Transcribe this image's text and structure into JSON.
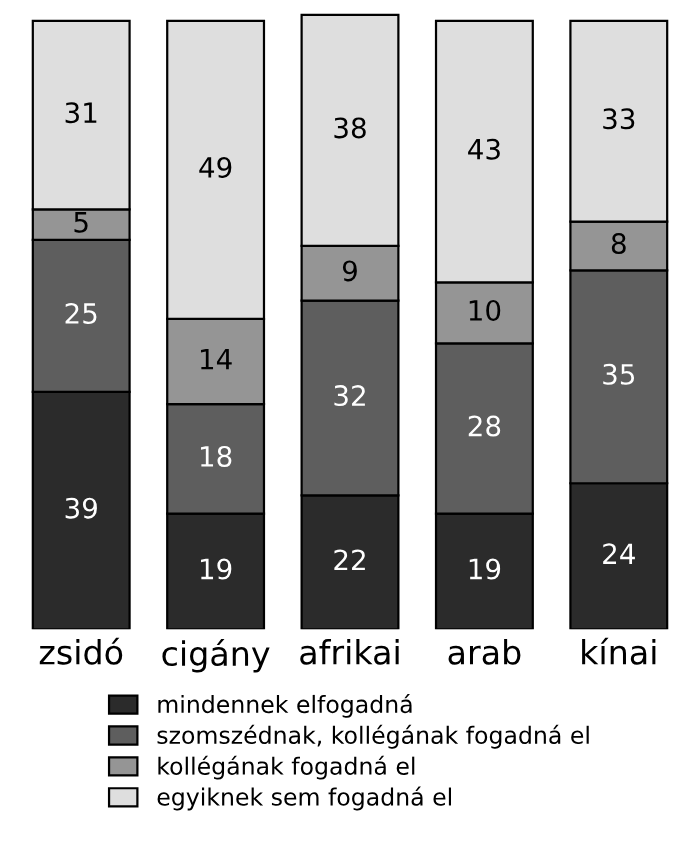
{
  "chart_data": {
    "type": "bar",
    "stacked": true,
    "data_labels": true,
    "legend": "bottom",
    "grid": false,
    "categories": [
      "zsidó",
      "cigány",
      "afrikai",
      "arab",
      "kínai"
    ],
    "series": [
      {
        "name": "mindennek elfogadná",
        "color": "#2b2b2b",
        "values": [
          39,
          19,
          22,
          19,
          24
        ]
      },
      {
        "name": "szomszédnak, kollégának fogadná el",
        "color": "#5e5e5e",
        "values": [
          25,
          18,
          32,
          28,
          35
        ]
      },
      {
        "name": "kollégának fogadná el",
        "color": "#959595",
        "values": [
          5,
          14,
          9,
          10,
          8
        ]
      },
      {
        "name": "egyiknek sem fogadná el",
        "color": "#dedede",
        "values": [
          31,
          49,
          38,
          43,
          33
        ]
      }
    ]
  }
}
